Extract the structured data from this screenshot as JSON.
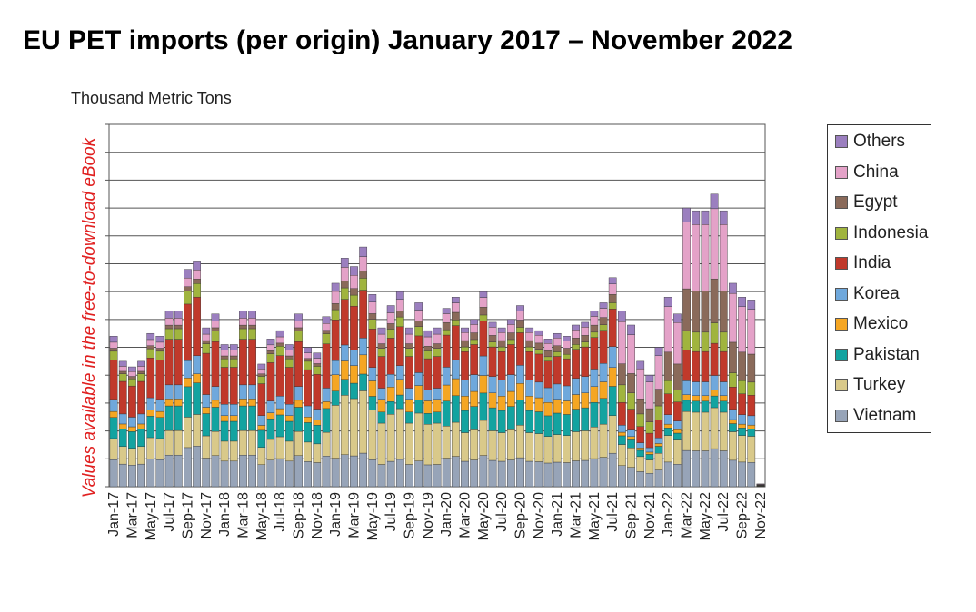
{
  "title": "EU PET imports (per origin) January 2017 – November 2022",
  "side_note": "Values available in the free-to-download eBook",
  "chart_data": {
    "type": "bar",
    "stacked": true,
    "ylabel": "Thousand Metric Tons",
    "ylim": [
      0,
      130
    ],
    "categories": [
      "Jan-17",
      "Feb-17",
      "Mar-17",
      "Apr-17",
      "May-17",
      "Jun-17",
      "Jul-17",
      "Aug-17",
      "Sep-17",
      "Oct-17",
      "Nov-17",
      "Dec-17",
      "Jan-18",
      "Feb-18",
      "Mar-18",
      "Apr-18",
      "May-18",
      "Jun-18",
      "Jul-18",
      "Aug-18",
      "Sep-18",
      "Oct-18",
      "Nov-18",
      "Dec-18",
      "Jan-19",
      "Feb-19",
      "Mar-19",
      "Apr-19",
      "May-19",
      "Jun-19",
      "Jul-19",
      "Aug-19",
      "Sep-19",
      "Oct-19",
      "Nov-19",
      "Dec-19",
      "Jan-20",
      "Feb-20",
      "Mar-20",
      "Apr-20",
      "May-20",
      "Jun-20",
      "Jul-20",
      "Aug-20",
      "Sep-20",
      "Oct-20",
      "Nov-20",
      "Dec-20",
      "Jan-21",
      "Feb-21",
      "Mar-21",
      "Apr-21",
      "May-21",
      "Jun-21",
      "Jul-21",
      "Aug-21",
      "Sep-21",
      "Oct-21",
      "Nov-21",
      "Dec-21",
      "Jan-22",
      "Feb-22",
      "Mar-22",
      "Apr-22",
      "May-22",
      "Jun-22",
      "Jul-22",
      "Aug-22",
      "Sep-22",
      "Oct-22",
      "Nov-22"
    ],
    "tick_labels": [
      "Jan-17",
      "Mar-17",
      "May-17",
      "Jul-17",
      "Sep-17",
      "Nov-17",
      "Jan-18",
      "Mar-18",
      "May-18",
      "Jul-18",
      "Sep-18",
      "Nov-18",
      "Jan-19",
      "Mar-19",
      "May-19",
      "Jul-19",
      "Sep-19",
      "Nov-19",
      "Jan-20",
      "Mar-20",
      "May-20",
      "Jul-20",
      "Sep-20",
      "Nov-20",
      "Jan-21",
      "Mar-21",
      "May-21",
      "Jul-21",
      "Sep-21",
      "Nov-21",
      "Jan-22",
      "Mar-22",
      "May-22",
      "Jul-22",
      "Sep-22",
      "Nov-22"
    ],
    "totals": [
      54,
      45,
      43,
      45,
      55,
      54,
      63,
      63,
      78,
      81,
      57,
      62,
      51,
      51,
      63,
      63,
      44,
      53,
      56,
      51,
      62,
      50,
      48,
      61,
      73,
      82,
      79,
      86,
      69,
      57,
      65,
      70,
      57,
      66,
      56,
      57,
      64,
      68,
      57,
      60,
      70,
      59,
      57,
      60,
      65,
      57,
      56,
      53,
      55,
      54,
      58,
      59,
      63,
      66,
      75,
      63,
      58,
      45,
      40,
      50,
      68,
      62,
      100,
      99,
      99,
      105,
      99,
      73,
      68,
      67,
      1
    ],
    "series": [
      {
        "name": "Others",
        "color": "#9b7fbf"
      },
      {
        "name": "China",
        "color": "#e4a2c8"
      },
      {
        "name": "Egypt",
        "color": "#8a6a5a"
      },
      {
        "name": "Indonesia",
        "color": "#a0b43e"
      },
      {
        "name": "India",
        "color": "#c0392b"
      },
      {
        "name": "Korea",
        "color": "#6fa8dc"
      },
      {
        "name": "Mexico",
        "color": "#f5a623"
      },
      {
        "name": "Pakistan",
        "color": "#13a3a0"
      },
      {
        "name": "Turkey",
        "color": "#d9c98a"
      },
      {
        "name": "Vietnam",
        "color": "#97a4b8"
      }
    ],
    "grid": true,
    "legend_position": "right"
  }
}
